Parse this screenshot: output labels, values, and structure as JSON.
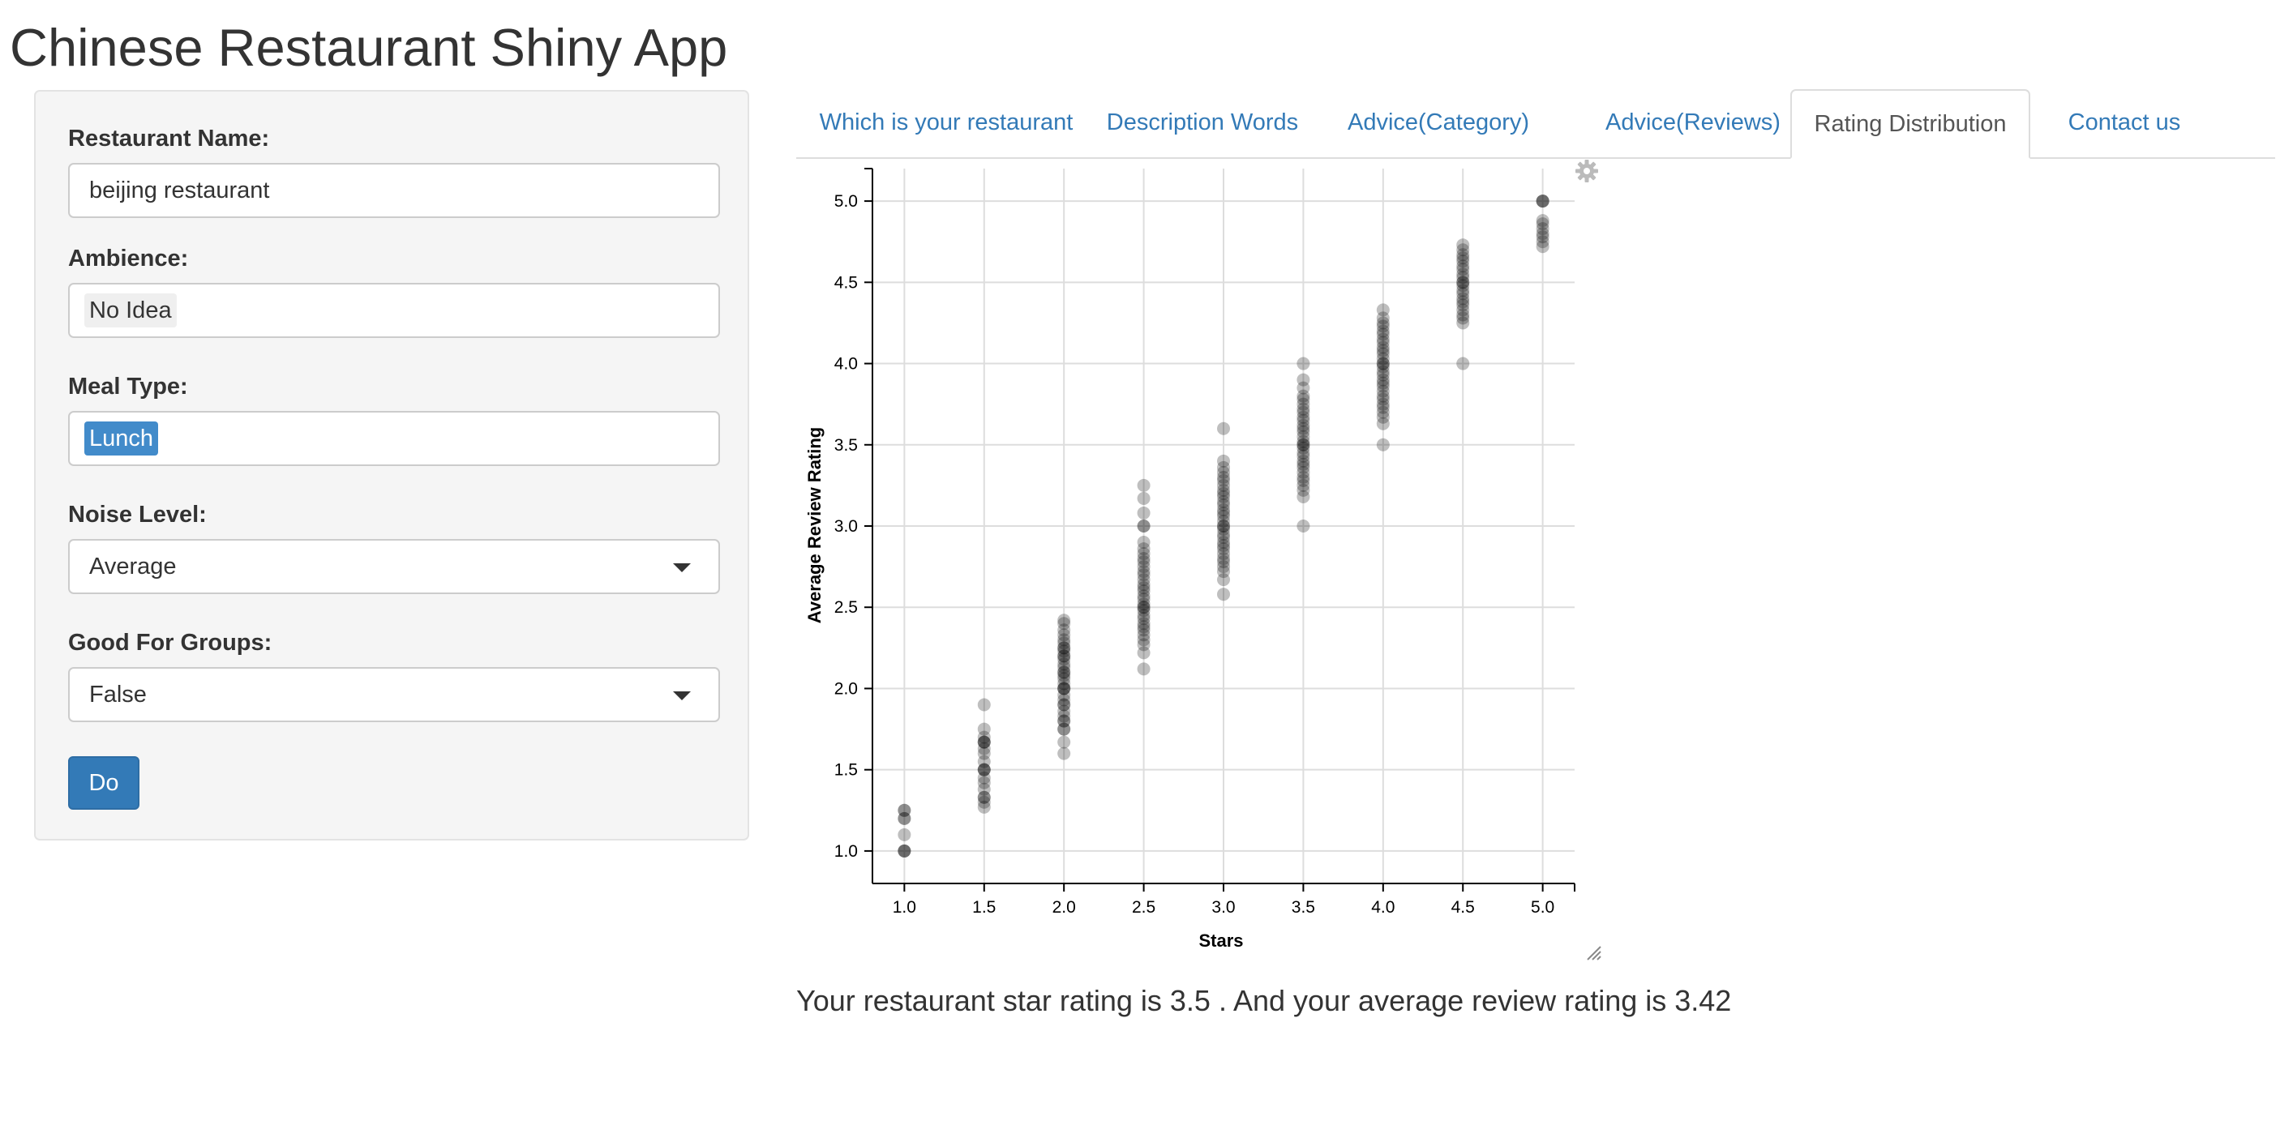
{
  "app": {
    "title": "Chinese Restaurant Shiny App"
  },
  "sidebar": {
    "restaurant_name": {
      "label": "Restaurant Name:",
      "value": "beijing restaurant"
    },
    "ambience": {
      "label": "Ambience:",
      "selected": "No Idea"
    },
    "meal_type": {
      "label": "Meal Type:",
      "selected": "Lunch"
    },
    "noise_level": {
      "label": "Noise Level:",
      "selected": "Average"
    },
    "good_for_groups": {
      "label": "Good For Groups:",
      "selected": "False"
    },
    "do_button": {
      "label": "Do"
    }
  },
  "tabs": [
    {
      "label": "Which is your restaurant",
      "active": false
    },
    {
      "label": "Description Words",
      "active": false
    },
    {
      "label": "Advice(Category)",
      "active": false
    },
    {
      "label": "Advice(Reviews)",
      "active": false
    },
    {
      "label": "Rating Distribution",
      "active": true
    },
    {
      "label": "Contact us",
      "active": false
    }
  ],
  "colors": {
    "accent": "#337ab7",
    "selected_chip": "#428bca",
    "point": "#000000"
  },
  "icons": {
    "plot_menu": "gear-icon",
    "resize": "resize-handle-icon",
    "dropdown": "chevron-down-icon"
  },
  "chart_data": {
    "type": "scatter",
    "title": "",
    "xlabel": "Stars",
    "ylabel": "Average Review Rating",
    "xlim": [
      0.8,
      5.2
    ],
    "ylim": [
      0.8,
      5.2
    ],
    "x_ticks": [
      "1.0",
      "1.5",
      "2.0",
      "2.5",
      "3.0",
      "3.5",
      "4.0",
      "4.5",
      "5.0"
    ],
    "y_ticks": [
      "1.0",
      "1.5",
      "2.0",
      "2.5",
      "3.0",
      "3.5",
      "4.0",
      "4.5",
      "5.0"
    ],
    "grid": true,
    "point_opacity": 0.25,
    "points": [
      {
        "x": 1.0,
        "y": 1.0
      },
      {
        "x": 1.0,
        "y": 1.0
      },
      {
        "x": 1.0,
        "y": 1.0
      },
      {
        "x": 1.0,
        "y": 1.1
      },
      {
        "x": 1.0,
        "y": 1.2
      },
      {
        "x": 1.0,
        "y": 1.2
      },
      {
        "x": 1.0,
        "y": 1.25
      },
      {
        "x": 1.0,
        "y": 1.25
      },
      {
        "x": 1.5,
        "y": 1.27
      },
      {
        "x": 1.5,
        "y": 1.3
      },
      {
        "x": 1.5,
        "y": 1.33
      },
      {
        "x": 1.5,
        "y": 1.33
      },
      {
        "x": 1.5,
        "y": 1.38
      },
      {
        "x": 1.5,
        "y": 1.42
      },
      {
        "x": 1.5,
        "y": 1.45
      },
      {
        "x": 1.5,
        "y": 1.5
      },
      {
        "x": 1.5,
        "y": 1.5
      },
      {
        "x": 1.5,
        "y": 1.5
      },
      {
        "x": 1.5,
        "y": 1.55
      },
      {
        "x": 1.5,
        "y": 1.6
      },
      {
        "x": 1.5,
        "y": 1.63
      },
      {
        "x": 1.5,
        "y": 1.67
      },
      {
        "x": 1.5,
        "y": 1.67
      },
      {
        "x": 1.5,
        "y": 1.67
      },
      {
        "x": 1.5,
        "y": 1.7
      },
      {
        "x": 1.5,
        "y": 1.75
      },
      {
        "x": 1.5,
        "y": 1.9
      },
      {
        "x": 2.0,
        "y": 1.6
      },
      {
        "x": 2.0,
        "y": 1.67
      },
      {
        "x": 2.0,
        "y": 1.75
      },
      {
        "x": 2.0,
        "y": 1.75
      },
      {
        "x": 2.0,
        "y": 1.8
      },
      {
        "x": 2.0,
        "y": 1.8
      },
      {
        "x": 2.0,
        "y": 1.83
      },
      {
        "x": 2.0,
        "y": 1.86
      },
      {
        "x": 2.0,
        "y": 1.9
      },
      {
        "x": 2.0,
        "y": 1.9
      },
      {
        "x": 2.0,
        "y": 1.93
      },
      {
        "x": 2.0,
        "y": 1.96
      },
      {
        "x": 2.0,
        "y": 2.0
      },
      {
        "x": 2.0,
        "y": 2.0
      },
      {
        "x": 2.0,
        "y": 2.0
      },
      {
        "x": 2.0,
        "y": 2.03
      },
      {
        "x": 2.0,
        "y": 2.06
      },
      {
        "x": 2.0,
        "y": 2.08
      },
      {
        "x": 2.0,
        "y": 2.1
      },
      {
        "x": 2.0,
        "y": 2.1
      },
      {
        "x": 2.0,
        "y": 2.13
      },
      {
        "x": 2.0,
        "y": 2.15
      },
      {
        "x": 2.0,
        "y": 2.18
      },
      {
        "x": 2.0,
        "y": 2.2
      },
      {
        "x": 2.0,
        "y": 2.2
      },
      {
        "x": 2.0,
        "y": 2.23
      },
      {
        "x": 2.0,
        "y": 2.25
      },
      {
        "x": 2.0,
        "y": 2.25
      },
      {
        "x": 2.0,
        "y": 2.28
      },
      {
        "x": 2.0,
        "y": 2.3
      },
      {
        "x": 2.0,
        "y": 2.33
      },
      {
        "x": 2.0,
        "y": 2.36
      },
      {
        "x": 2.0,
        "y": 2.4
      },
      {
        "x": 2.0,
        "y": 2.42
      },
      {
        "x": 2.5,
        "y": 2.12
      },
      {
        "x": 2.5,
        "y": 2.22
      },
      {
        "x": 2.5,
        "y": 2.27
      },
      {
        "x": 2.5,
        "y": 2.3
      },
      {
        "x": 2.5,
        "y": 2.33
      },
      {
        "x": 2.5,
        "y": 2.36
      },
      {
        "x": 2.5,
        "y": 2.38
      },
      {
        "x": 2.5,
        "y": 2.4
      },
      {
        "x": 2.5,
        "y": 2.43
      },
      {
        "x": 2.5,
        "y": 2.45
      },
      {
        "x": 2.5,
        "y": 2.48
      },
      {
        "x": 2.5,
        "y": 2.5
      },
      {
        "x": 2.5,
        "y": 2.5
      },
      {
        "x": 2.5,
        "y": 2.52
      },
      {
        "x": 2.5,
        "y": 2.55
      },
      {
        "x": 2.5,
        "y": 2.57
      },
      {
        "x": 2.5,
        "y": 2.6
      },
      {
        "x": 2.5,
        "y": 2.62
      },
      {
        "x": 2.5,
        "y": 2.64
      },
      {
        "x": 2.5,
        "y": 2.67
      },
      {
        "x": 2.5,
        "y": 2.7
      },
      {
        "x": 2.5,
        "y": 2.72
      },
      {
        "x": 2.5,
        "y": 2.75
      },
      {
        "x": 2.5,
        "y": 2.78
      },
      {
        "x": 2.5,
        "y": 2.8
      },
      {
        "x": 2.5,
        "y": 2.83
      },
      {
        "x": 2.5,
        "y": 2.86
      },
      {
        "x": 2.5,
        "y": 2.9
      },
      {
        "x": 2.5,
        "y": 3.0
      },
      {
        "x": 2.5,
        "y": 3.0
      },
      {
        "x": 2.5,
        "y": 3.08
      },
      {
        "x": 2.5,
        "y": 3.17
      },
      {
        "x": 2.5,
        "y": 3.25
      },
      {
        "x": 3.0,
        "y": 2.58
      },
      {
        "x": 3.0,
        "y": 2.67
      },
      {
        "x": 3.0,
        "y": 2.72
      },
      {
        "x": 3.0,
        "y": 2.75
      },
      {
        "x": 3.0,
        "y": 2.78
      },
      {
        "x": 3.0,
        "y": 2.8
      },
      {
        "x": 3.0,
        "y": 2.83
      },
      {
        "x": 3.0,
        "y": 2.86
      },
      {
        "x": 3.0,
        "y": 2.88
      },
      {
        "x": 3.0,
        "y": 2.9
      },
      {
        "x": 3.0,
        "y": 2.93
      },
      {
        "x": 3.0,
        "y": 2.95
      },
      {
        "x": 3.0,
        "y": 2.98
      },
      {
        "x": 3.0,
        "y": 3.0
      },
      {
        "x": 3.0,
        "y": 3.0
      },
      {
        "x": 3.0,
        "y": 3.03
      },
      {
        "x": 3.0,
        "y": 3.06
      },
      {
        "x": 3.0,
        "y": 3.08
      },
      {
        "x": 3.0,
        "y": 3.1
      },
      {
        "x": 3.0,
        "y": 3.13
      },
      {
        "x": 3.0,
        "y": 3.15
      },
      {
        "x": 3.0,
        "y": 3.18
      },
      {
        "x": 3.0,
        "y": 3.2
      },
      {
        "x": 3.0,
        "y": 3.22
      },
      {
        "x": 3.0,
        "y": 3.25
      },
      {
        "x": 3.0,
        "y": 3.28
      },
      {
        "x": 3.0,
        "y": 3.3
      },
      {
        "x": 3.0,
        "y": 3.33
      },
      {
        "x": 3.0,
        "y": 3.36
      },
      {
        "x": 3.0,
        "y": 3.4
      },
      {
        "x": 3.0,
        "y": 3.6
      },
      {
        "x": 3.5,
        "y": 3.0
      },
      {
        "x": 3.5,
        "y": 3.18
      },
      {
        "x": 3.5,
        "y": 3.22
      },
      {
        "x": 3.5,
        "y": 3.25
      },
      {
        "x": 3.5,
        "y": 3.28
      },
      {
        "x": 3.5,
        "y": 3.3
      },
      {
        "x": 3.5,
        "y": 3.33
      },
      {
        "x": 3.5,
        "y": 3.36
      },
      {
        "x": 3.5,
        "y": 3.38
      },
      {
        "x": 3.5,
        "y": 3.4
      },
      {
        "x": 3.5,
        "y": 3.43
      },
      {
        "x": 3.5,
        "y": 3.45
      },
      {
        "x": 3.5,
        "y": 3.48
      },
      {
        "x": 3.5,
        "y": 3.5
      },
      {
        "x": 3.5,
        "y": 3.5
      },
      {
        "x": 3.5,
        "y": 3.52
      },
      {
        "x": 3.5,
        "y": 3.55
      },
      {
        "x": 3.5,
        "y": 3.58
      },
      {
        "x": 3.5,
        "y": 3.6
      },
      {
        "x": 3.5,
        "y": 3.62
      },
      {
        "x": 3.5,
        "y": 3.65
      },
      {
        "x": 3.5,
        "y": 3.67
      },
      {
        "x": 3.5,
        "y": 3.7
      },
      {
        "x": 3.5,
        "y": 3.72
      },
      {
        "x": 3.5,
        "y": 3.75
      },
      {
        "x": 3.5,
        "y": 3.78
      },
      {
        "x": 3.5,
        "y": 3.8
      },
      {
        "x": 3.5,
        "y": 3.85
      },
      {
        "x": 3.5,
        "y": 3.9
      },
      {
        "x": 3.5,
        "y": 4.0
      },
      {
        "x": 4.0,
        "y": 3.5
      },
      {
        "x": 4.0,
        "y": 3.63
      },
      {
        "x": 4.0,
        "y": 3.67
      },
      {
        "x": 4.0,
        "y": 3.7
      },
      {
        "x": 4.0,
        "y": 3.73
      },
      {
        "x": 4.0,
        "y": 3.75
      },
      {
        "x": 4.0,
        "y": 3.78
      },
      {
        "x": 4.0,
        "y": 3.8
      },
      {
        "x": 4.0,
        "y": 3.83
      },
      {
        "x": 4.0,
        "y": 3.86
      },
      {
        "x": 4.0,
        "y": 3.88
      },
      {
        "x": 4.0,
        "y": 3.9
      },
      {
        "x": 4.0,
        "y": 3.93
      },
      {
        "x": 4.0,
        "y": 3.95
      },
      {
        "x": 4.0,
        "y": 3.98
      },
      {
        "x": 4.0,
        "y": 4.0
      },
      {
        "x": 4.0,
        "y": 4.0
      },
      {
        "x": 4.0,
        "y": 4.03
      },
      {
        "x": 4.0,
        "y": 4.06
      },
      {
        "x": 4.0,
        "y": 4.08
      },
      {
        "x": 4.0,
        "y": 4.1
      },
      {
        "x": 4.0,
        "y": 4.13
      },
      {
        "x": 4.0,
        "y": 4.15
      },
      {
        "x": 4.0,
        "y": 4.18
      },
      {
        "x": 4.0,
        "y": 4.2
      },
      {
        "x": 4.0,
        "y": 4.23
      },
      {
        "x": 4.0,
        "y": 4.25
      },
      {
        "x": 4.0,
        "y": 4.28
      },
      {
        "x": 4.0,
        "y": 4.33
      },
      {
        "x": 4.5,
        "y": 4.0
      },
      {
        "x": 4.5,
        "y": 4.25
      },
      {
        "x": 4.5,
        "y": 4.28
      },
      {
        "x": 4.5,
        "y": 4.3
      },
      {
        "x": 4.5,
        "y": 4.33
      },
      {
        "x": 4.5,
        "y": 4.36
      },
      {
        "x": 4.5,
        "y": 4.38
      },
      {
        "x": 4.5,
        "y": 4.4
      },
      {
        "x": 4.5,
        "y": 4.43
      },
      {
        "x": 4.5,
        "y": 4.45
      },
      {
        "x": 4.5,
        "y": 4.48
      },
      {
        "x": 4.5,
        "y": 4.5
      },
      {
        "x": 4.5,
        "y": 4.5
      },
      {
        "x": 4.5,
        "y": 4.53
      },
      {
        "x": 4.5,
        "y": 4.55
      },
      {
        "x": 4.5,
        "y": 4.58
      },
      {
        "x": 4.5,
        "y": 4.6
      },
      {
        "x": 4.5,
        "y": 4.63
      },
      {
        "x": 4.5,
        "y": 4.65
      },
      {
        "x": 4.5,
        "y": 4.67
      },
      {
        "x": 4.5,
        "y": 4.7
      },
      {
        "x": 4.5,
        "y": 4.73
      },
      {
        "x": 5.0,
        "y": 4.72
      },
      {
        "x": 5.0,
        "y": 4.75
      },
      {
        "x": 5.0,
        "y": 4.78
      },
      {
        "x": 5.0,
        "y": 4.8
      },
      {
        "x": 5.0,
        "y": 4.83
      },
      {
        "x": 5.0,
        "y": 4.86
      },
      {
        "x": 5.0,
        "y": 4.88
      },
      {
        "x": 5.0,
        "y": 5.0
      },
      {
        "x": 5.0,
        "y": 5.0
      },
      {
        "x": 5.0,
        "y": 5.0
      }
    ]
  },
  "result": {
    "text": "Your restaurant star rating is 3.5 . And your average review rating is 3.42"
  }
}
